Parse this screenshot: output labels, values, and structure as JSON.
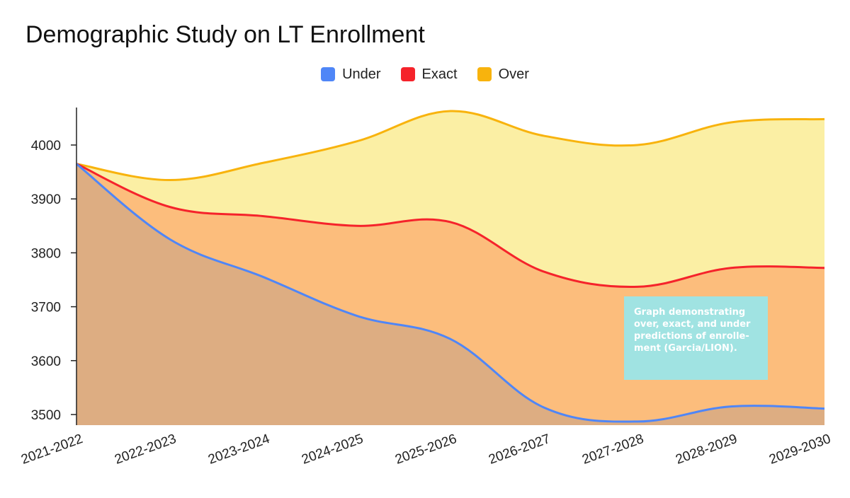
{
  "colors": {
    "under_line": "#4f86f7",
    "exact_line": "#f5232b",
    "over_line": "#f8b30d",
    "under_fill": "#ddad82",
    "exact_fill": "#fcbd7c",
    "over_fill": "#fbefa4",
    "annotation_bg": "#a0e3e2"
  },
  "chart_data": {
    "type": "area",
    "title": "Demographic Study on LT Enrollment",
    "xlabel": "",
    "ylabel": "",
    "categories": [
      "2021-2022",
      "2022-2023",
      "2023-2024",
      "2024-2025",
      "2025-2026",
      "2026-2027",
      "2027-2028",
      "2028-2029",
      "2029-2030"
    ],
    "y_ticks": [
      "3500",
      "3600",
      "3700",
      "3800",
      "3900",
      "4000"
    ],
    "ylim": [
      3480,
      4070
    ],
    "grid": false,
    "legend_position": "top-center",
    "series": [
      {
        "name": "Under",
        "values": [
          3965,
          3825,
          3755,
          3683,
          3640,
          3513,
          3487,
          3515,
          3511
        ]
      },
      {
        "name": "Exact",
        "values": [
          3965,
          3885,
          3868,
          3850,
          3857,
          3765,
          3737,
          3772,
          3772
        ]
      },
      {
        "name": "Over",
        "values": [
          3965,
          3935,
          3967,
          4007,
          4063,
          4017,
          4000,
          4042,
          4048
        ]
      }
    ],
    "annotation": "Graph demonstrating\nover, exact, and under\npredictions of enrolle-\nment (Garcia/LION)."
  }
}
